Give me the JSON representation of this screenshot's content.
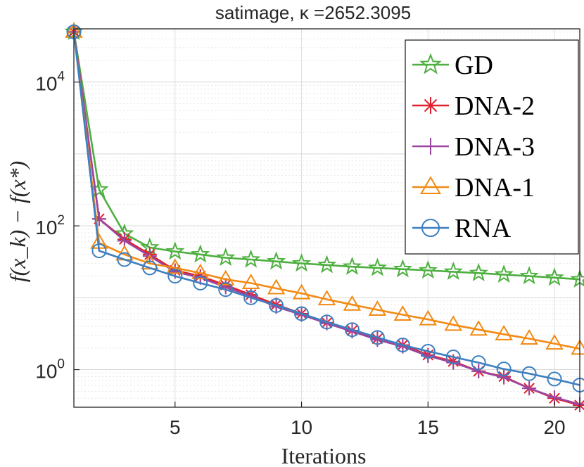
{
  "chart_data": {
    "type": "line",
    "title": "satimage, κ =2652.3095",
    "xlabel": "Iterations",
    "ylabel": "f(x_k) − f(x*)",
    "yscale": "log",
    "xlim": [
      1,
      21
    ],
    "ylim": [
      0.3,
      55000
    ],
    "grid": true,
    "legend_position": "top-right",
    "x_ticks": [
      5,
      10,
      15,
      20
    ],
    "x_tick_labels": [
      "5",
      "10",
      "15",
      "20"
    ],
    "y_ticks": [
      1,
      100,
      10000
    ],
    "y_tick_labels": [
      {
        "base": "10",
        "exp": "0"
      },
      {
        "base": "10",
        "exp": "2"
      },
      {
        "base": "10",
        "exp": "4"
      }
    ],
    "x": [
      1,
      2,
      3,
      4,
      5,
      6,
      7,
      8,
      9,
      10,
      11,
      12,
      13,
      14,
      15,
      16,
      17,
      18,
      19,
      20,
      21
    ],
    "series": [
      {
        "name": "GD",
        "color": "#4daf3f",
        "marker": "star",
        "values": [
          50000,
          320,
          78,
          50,
          44,
          40,
          36,
          34,
          32,
          30,
          28.5,
          27,
          26,
          25,
          24,
          23,
          22,
          21,
          20,
          19,
          18
        ]
      },
      {
        "name": "DNA-2",
        "color": "#e0202c",
        "marker": "asterisk",
        "values": [
          50000,
          125,
          65,
          40,
          24,
          20,
          15,
          11,
          8,
          6,
          4.5,
          3.5,
          2.7,
          2.2,
          1.6,
          1.3,
          0.95,
          0.8,
          0.55,
          0.4,
          0.32
        ]
      },
      {
        "name": "DNA-3",
        "color": "#9b46a0",
        "marker": "plus",
        "values": [
          50000,
          125,
          62,
          38,
          23,
          19,
          14,
          10.5,
          7.5,
          5.8,
          4.4,
          3.4,
          2.6,
          2.1,
          1.55,
          1.25,
          0.95,
          0.78,
          0.55,
          0.41,
          0.33
        ]
      },
      {
        "name": "DNA-1",
        "color": "#f28a14",
        "marker": "triangle",
        "values": [
          50000,
          58,
          40,
          30,
          26,
          22,
          18,
          16,
          13.5,
          11.5,
          9.5,
          8,
          6.8,
          5.8,
          5,
          4.2,
          3.6,
          3.1,
          2.7,
          2.3,
          1.95
        ]
      },
      {
        "name": "RNA",
        "color": "#3d7fbf",
        "marker": "circle",
        "values": [
          50000,
          45,
          34,
          26,
          20,
          16,
          13,
          10,
          7.8,
          6,
          4.6,
          3.6,
          2.8,
          2.2,
          1.8,
          1.5,
          1.25,
          1.02,
          0.88,
          0.74,
          0.61
        ]
      }
    ]
  }
}
